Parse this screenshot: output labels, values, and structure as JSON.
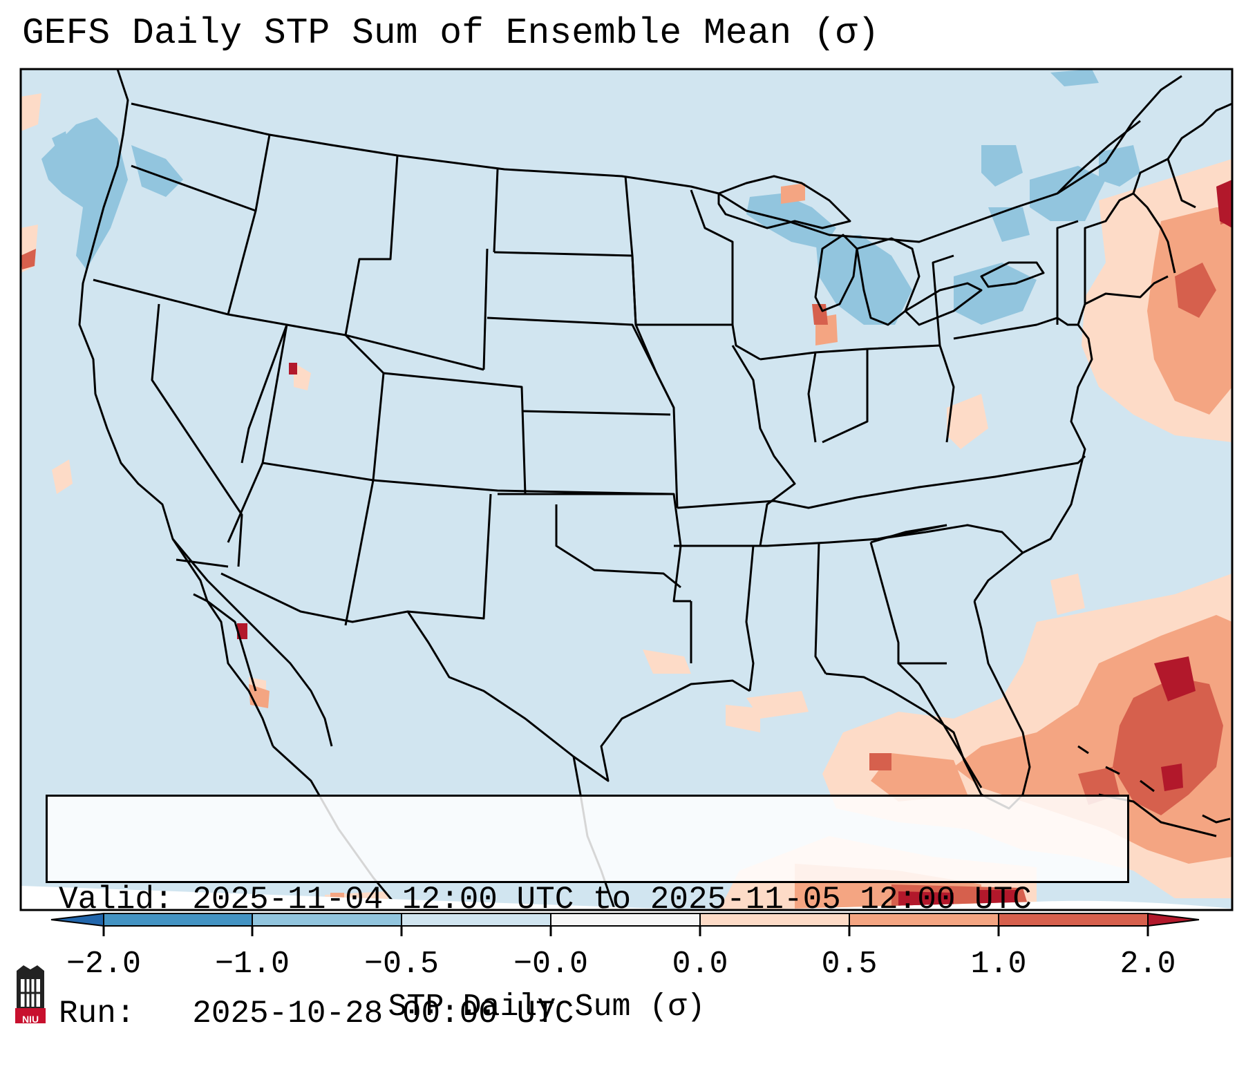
{
  "title": "GEFS Daily STP Sum of Ensemble Mean (σ)",
  "valid_line": "Valid: 2025-11-04 12:00 UTC to 2025-11-05 12:00 UTC",
  "run_line": "Run:   2025-10-28 00:00 UTC",
  "colorbar": {
    "label": "STP Daily Sum (σ)",
    "ticks": [
      "−2.0",
      "−1.0",
      "−0.5",
      "−0.0",
      "0.0",
      "0.5",
      "1.0",
      "2.0"
    ],
    "colors": [
      "#4393c3",
      "#92c5de",
      "#d1e5f0",
      "#f7f7f7",
      "#fddbc7",
      "#f4a582",
      "#d6604d",
      "#b2182b"
    ],
    "extend": "both"
  },
  "logo": {
    "text": "NIU",
    "icon": "university-logo-icon"
  },
  "map": {
    "background_color": "#d1e5f0",
    "region": "Contiguous United States",
    "features": [
      "state borders",
      "coastlines",
      "Great Lakes"
    ]
  }
}
